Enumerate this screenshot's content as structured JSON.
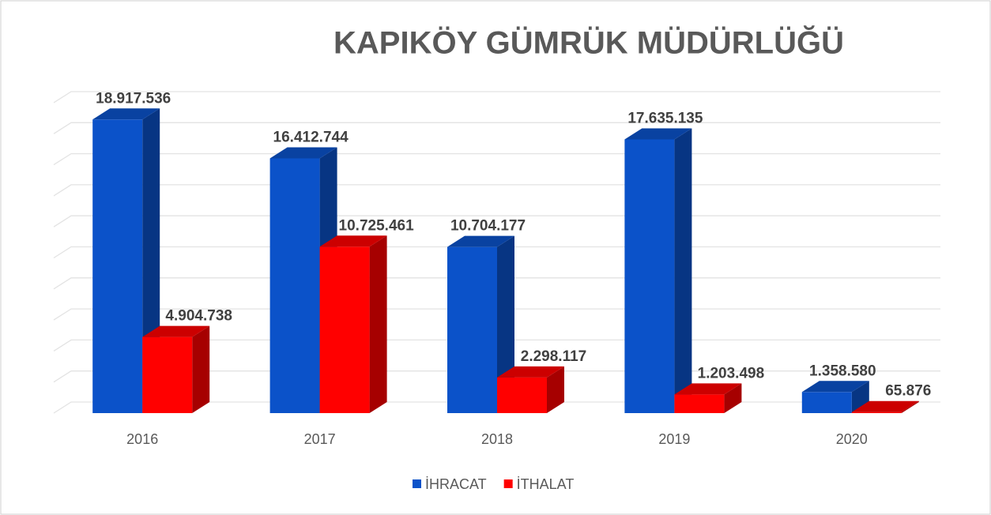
{
  "chart_data": {
    "type": "bar3d",
    "title": "KAPIKÖY GÜMRÜK MÜDÜRLÜĞÜ",
    "categories": [
      "2016",
      "2017",
      "2018",
      "2019",
      "2020"
    ],
    "series": [
      {
        "name": "İHRACAT",
        "color": "#0b52c9",
        "values": [
          18917536,
          16412744,
          10704177,
          17635135,
          1358580
        ],
        "value_labels": [
          "18.917.536",
          "16.412.744",
          "10.704.177",
          "17.635.135",
          "1.358.580"
        ]
      },
      {
        "name": "İTHALAT",
        "color": "#ff0000",
        "values": [
          4904738,
          10725461,
          2298117,
          1203498,
          65876
        ],
        "value_labels": [
          "4.904.738",
          "10.725.461",
          "2.298.117",
          "1.203.498",
          "65.876"
        ]
      }
    ],
    "ylim": [
      0,
      20000000
    ],
    "yticks": [
      0,
      2000000,
      4000000,
      6000000,
      8000000,
      10000000,
      12000000,
      14000000,
      16000000,
      18000000,
      20000000
    ],
    "grid": true,
    "legend": "bottom"
  }
}
